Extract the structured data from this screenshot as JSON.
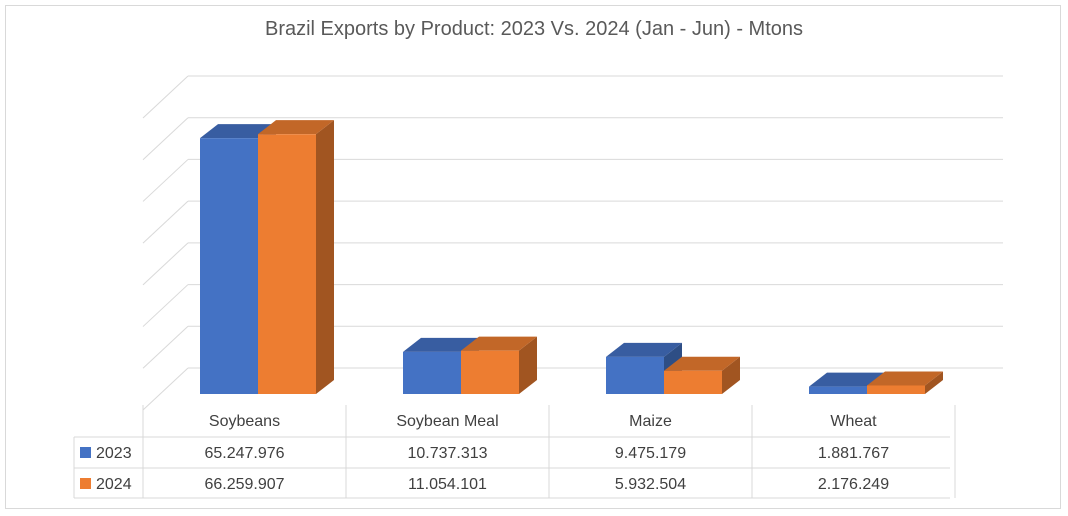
{
  "chart_data": {
    "type": "bar",
    "title": "Brazil Exports by Product: 2023 Vs. 2024 (Jan - Jun) - Mtons",
    "categories": [
      "Soybeans",
      "Soybean Meal",
      "Maize",
      "Wheat"
    ],
    "series": [
      {
        "name": "2023",
        "values": [
          65247976,
          10737313,
          9475179,
          1881767
        ],
        "labels": [
          "65.247.976",
          "10.737.313",
          "9.475.179",
          "1.881.767"
        ],
        "color": "#4472c4"
      },
      {
        "name": "2024",
        "values": [
          66259907,
          11054101,
          5932504,
          2176249
        ],
        "labels": [
          "66.259.907",
          "11.054.101",
          "5.932.504",
          "2.176.249"
        ],
        "color": "#ed7d31"
      }
    ],
    "ylim": [
      0,
      70000000
    ],
    "grid": true,
    "style": "3d-clustered-column",
    "data_table": true
  }
}
